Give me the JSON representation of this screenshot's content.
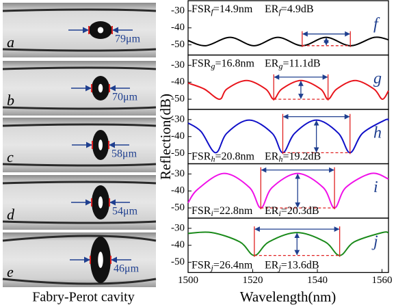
{
  "figure": {
    "images": [
      {
        "label": "a",
        "size": "79μm"
      },
      {
        "label": "b",
        "size": "70μm"
      },
      {
        "label": "c",
        "size": "58μm"
      },
      {
        "label": "d",
        "size": "54μm"
      },
      {
        "label": "e",
        "size": "46μm"
      }
    ],
    "caption": "Fabry-Perot cavity"
  },
  "chart_data": {
    "type": "line",
    "xlabel": "Wavelength(nm)",
    "ylabel": "Reflection(dB)",
    "xlim": [
      1500,
      1562
    ],
    "xticks": [
      1500,
      1520,
      1540,
      1560
    ],
    "panels": [
      {
        "label": "f",
        "color": "#000000",
        "ylim": [
          -56,
          -24
        ],
        "yticks": [
          -30,
          -40,
          -50
        ],
        "x": [
          1500,
          1505.5,
          1513,
          1520.4,
          1527.8,
          1535.3,
          1542.7,
          1550.2,
          1557.6,
          1562
        ],
        "values": [
          -47.5,
          -50.5,
          -45.6,
          -50.5,
          -45.6,
          -50.5,
          -45.6,
          -50.5,
          -45.6,
          -47
        ],
        "annotation": {
          "fsr": "FSR",
          "fsr_sub": "f",
          "fsr_value": "=14.9nm",
          "er": "ER",
          "er_sub": "f",
          "er_value": "=4.9dB"
        }
      },
      {
        "label": "g",
        "color": "#e8141b",
        "ylim": [
          -56,
          -24
        ],
        "yticks": [
          -30,
          -40,
          -50
        ],
        "x": [
          1500,
          1505,
          1509.7,
          1512,
          1518.1,
          1524,
          1526.5,
          1529,
          1534.9,
          1541,
          1543.3,
          1546,
          1551.7,
          1557.5,
          1560.1,
          1562
        ],
        "values": [
          -40.5,
          -44,
          -50,
          -44,
          -39,
          -44,
          -50,
          -44,
          -39,
          -44,
          -50,
          -44,
          -39,
          -44,
          -50,
          -45
        ],
        "annotation": {
          "fsr": "FSR",
          "fsr_sub": "g",
          "fsr_value": "=16.8nm",
          "er": "ER",
          "er_sub": "g",
          "er_value": "=11.1dB"
        }
      },
      {
        "label": "h",
        "color": "#1010c8",
        "ylim": [
          -56,
          -24
        ],
        "yticks": [
          -30,
          -40,
          -50
        ],
        "x": [
          1500,
          1504,
          1508.5,
          1512,
          1518.9,
          1526,
          1529.3,
          1533,
          1539.7,
          1546.5,
          1550.1,
          1554,
          1560.9,
          1562
        ],
        "values": [
          -32,
          -37,
          -49.5,
          -38,
          -30.3,
          -38,
          -49.5,
          -38,
          -30.3,
          -38,
          -49.5,
          -38,
          -30.3,
          -30.5
        ],
        "annotation": {
          "fsr": "FSR",
          "fsr_sub": "h",
          "fsr_value": "=20.8nm",
          "er": "ER",
          "er_sub": "h",
          "er_value": "=19.2dB"
        }
      },
      {
        "label": "i",
        "color": "#f010e8",
        "ylim": [
          -56,
          -24
        ],
        "yticks": [
          -30,
          -40,
          -50
        ],
        "x": [
          1500,
          1503,
          1511.1,
          1519,
          1522.5,
          1526,
          1533.9,
          1541.8,
          1545.3,
          1548.8,
          1556.7,
          1562
        ],
        "values": [
          -47,
          -39,
          -29.7,
          -38,
          -50,
          -38,
          -29.7,
          -38,
          -50,
          -38,
          -29.7,
          -33
        ],
        "annotation": {
          "fsr": "FSR",
          "fsr_sub": "i",
          "fsr_value": "=22.8nm",
          "er": "ER",
          "er_sub": "i",
          "er_value": "=20.3dB"
        }
      },
      {
        "label": "j",
        "color": "#1a8a1a",
        "ylim": [
          -56,
          -24
        ],
        "yticks": [
          -30,
          -40,
          -50
        ],
        "x": [
          1500,
          1507.3,
          1516,
          1520.5,
          1525,
          1533.7,
          1542.4,
          1546.9,
          1551.4,
          1560.1,
          1562
        ],
        "values": [
          -33,
          -32.5,
          -38,
          -46,
          -38,
          -32.5,
          -38,
          -46,
          -38,
          -32.5,
          -32.7
        ],
        "annotation": {
          "fsr": "FSR",
          "fsr_sub": "j",
          "fsr_value": "=26.4nm",
          "er": "ER",
          "er_sub": "j",
          "er_value": "=13.6dB"
        }
      }
    ]
  }
}
